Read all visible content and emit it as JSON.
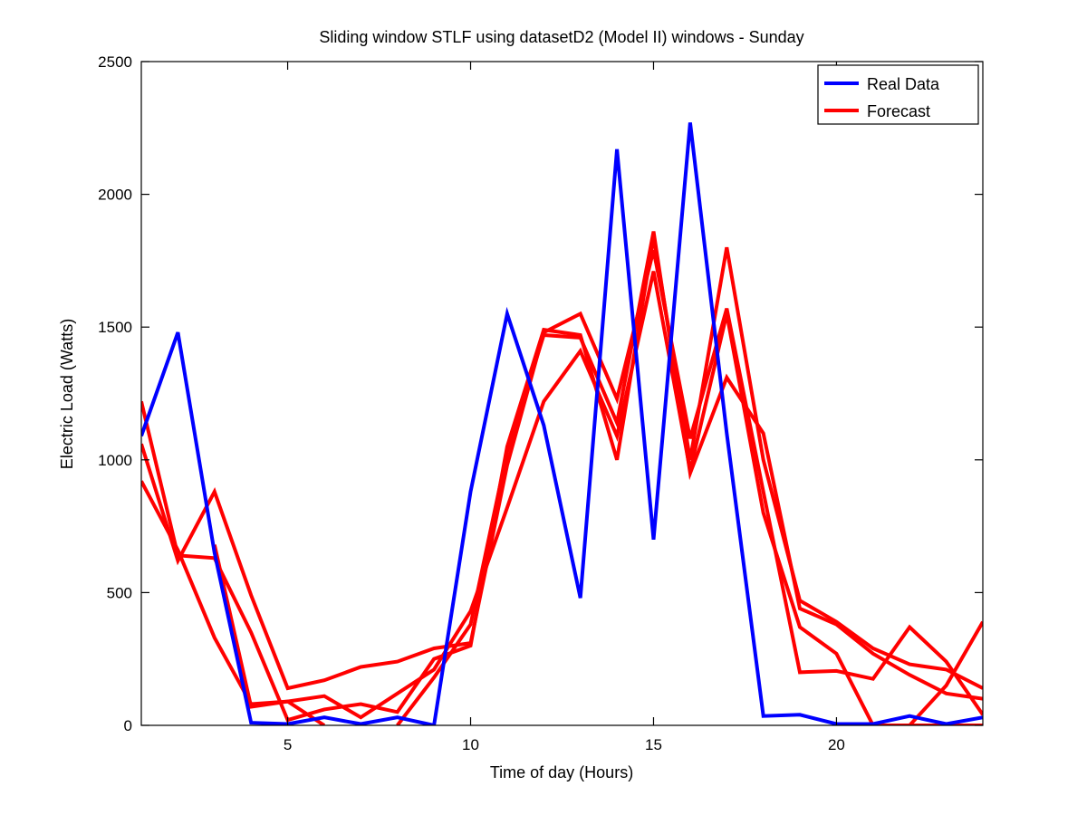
{
  "chart_data": {
    "type": "line",
    "title": "Sliding window STLF using datasetD2 (Model II) windows - Sunday",
    "xlabel": "Time of day (Hours)",
    "ylabel": "Electric Load (Watts)",
    "xlim": [
      1,
      24
    ],
    "ylim": [
      0,
      2500
    ],
    "xticks": [
      5,
      10,
      15,
      20
    ],
    "yticks": [
      0,
      500,
      1000,
      1500,
      2000,
      2500
    ],
    "grid": false,
    "legend_position": "top-right",
    "legend": [
      {
        "label": "Real Data",
        "color": "#0000ff"
      },
      {
        "label": "Forecast",
        "color": "#ff0000"
      }
    ],
    "x": [
      1,
      2,
      3,
      4,
      5,
      6,
      7,
      8,
      9,
      10,
      11,
      12,
      13,
      14,
      15,
      16,
      17,
      18,
      19,
      20,
      21,
      22,
      23,
      24
    ],
    "real_data": [
      1090,
      1480,
      650,
      10,
      5,
      30,
      5,
      30,
      0,
      880,
      1550,
      1130,
      480,
      2170,
      700,
      2270,
      1100,
      35,
      40,
      5,
      5,
      35,
      5,
      30
    ],
    "forecasts": [
      {
        "color": "#ff0000",
        "values": [
          1220,
          640,
          630,
          350,
          20,
          60,
          80,
          50,
          250,
          300,
          1050,
          1490,
          1470,
          1000,
          1840,
          1000,
          1800,
          1000,
          470,
          390,
          290,
          230,
          210,
          140
        ]
      },
      {
        "color": "#ff0000",
        "values": [
          920,
          660,
          330,
          80,
          90,
          110,
          30,
          120,
          210,
          430,
          820,
          1220,
          1410,
          1090,
          1710,
          960,
          1550,
          800,
          370,
          270,
          0,
          0,
          0,
          0
        ]
      },
      {
        "color": "#ff0000",
        "values": [
          1060,
          620,
          880,
          490,
          140,
          170,
          220,
          240,
          290,
          310,
          980,
          1480,
          1550,
          1230,
          1790,
          1080,
          1570,
          880,
          200,
          205,
          175,
          370,
          240,
          40
        ]
      },
      {
        "color": "#ff0000",
        "values": [
          null,
          null,
          680,
          70,
          90,
          0,
          null,
          0,
          180,
          380,
          1030,
          1470,
          1460,
          1140,
          1860,
          950,
          1310,
          1100,
          440,
          380,
          270,
          190,
          120,
          100
        ]
      },
      {
        "color": "#ff0000",
        "values": [
          null,
          null,
          null,
          null,
          null,
          null,
          null,
          null,
          null,
          null,
          null,
          null,
          null,
          null,
          null,
          null,
          null,
          null,
          null,
          null,
          null,
          0,
          150,
          390
        ]
      }
    ]
  }
}
